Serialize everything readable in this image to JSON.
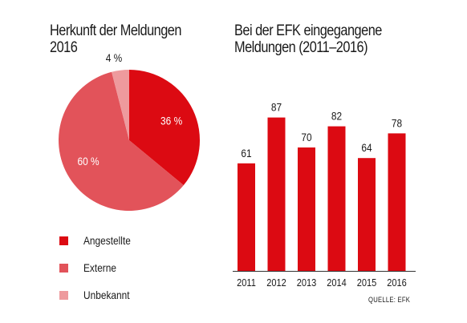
{
  "colors": {
    "employees": "#dc0a12",
    "external": "#e2535a",
    "unknown": "#ee9a9d",
    "bars": "#dc0a12",
    "axis": "#333333",
    "text": "#1a1a1a"
  },
  "chart_data": [
    {
      "type": "pie",
      "title_lines": [
        "Herkunft der Meldungen",
        "2016"
      ],
      "slices": [
        {
          "label": "Angestellte",
          "value": 36,
          "value_label": "36 %",
          "color": "#dc0a12"
        },
        {
          "label": "Externe",
          "value": 60,
          "value_label": "60 %",
          "color": "#e2535a"
        },
        {
          "label": "Unbekannt",
          "value": 4,
          "value_label": "4 %",
          "color": "#ee9a9d"
        }
      ],
      "legend_placement": "bottom-left"
    },
    {
      "type": "bar",
      "title_lines": [
        "Bei der EFK eingegangene",
        "Meldungen (2011–2016)"
      ],
      "categories": [
        "2011",
        "2012",
        "2013",
        "2014",
        "2015",
        "2016"
      ],
      "values": [
        61,
        87,
        70,
        82,
        64,
        78
      ],
      "value_labels": [
        "61",
        "87",
        "70",
        "82",
        "64",
        "78"
      ],
      "ylim": [
        0,
        100
      ],
      "xlabel": "",
      "ylabel": "",
      "grid": false,
      "source": "QUELLE: EFK"
    }
  ]
}
